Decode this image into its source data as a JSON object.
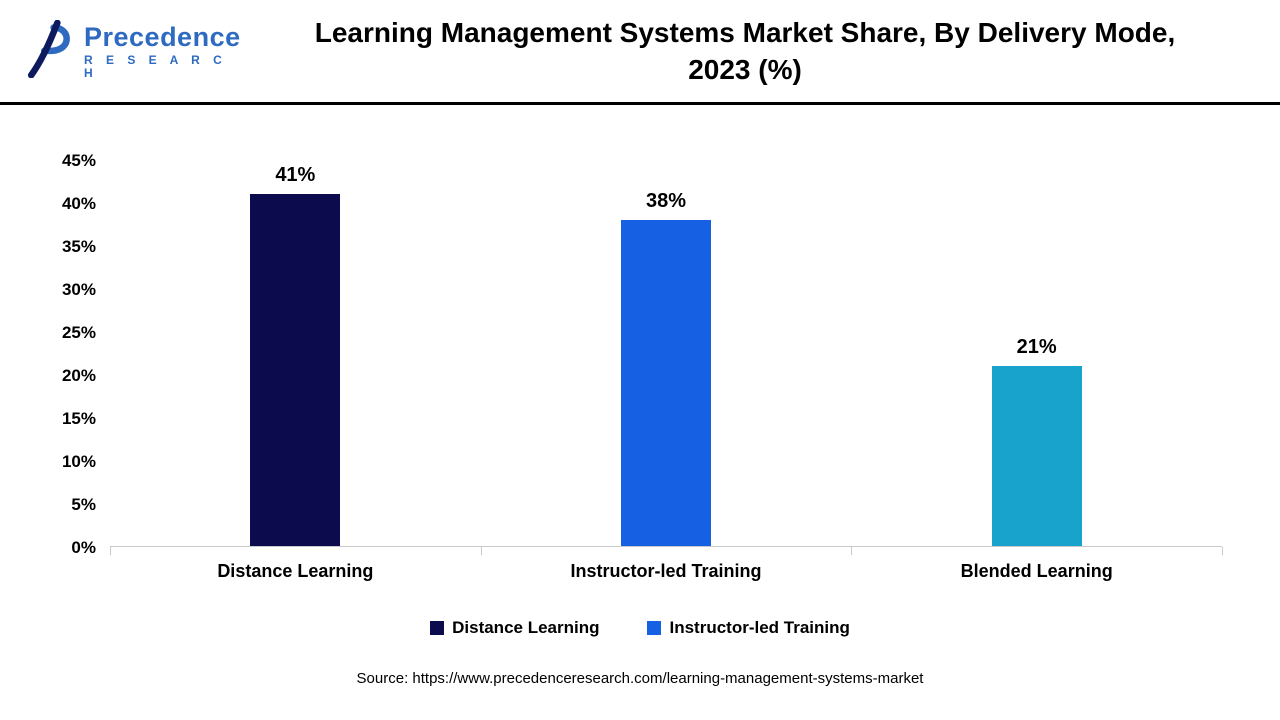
{
  "header": {
    "logo_line1": "Precedence",
    "logo_line2": "R E S E A R C H",
    "title_line1": "Learning Management Systems Market Share, By Delivery Mode,",
    "title_line2": "2023 (%)"
  },
  "chart_data": {
    "type": "bar",
    "title": "Learning Management Systems Market Share, By Delivery Mode, 2023 (%)",
    "categories": [
      "Distance Learning",
      "Instructor-led Training",
      "Blended Learning"
    ],
    "values": [
      41,
      38,
      21
    ],
    "data_labels": [
      "41%",
      "38%",
      "21%"
    ],
    "bar_colors": [
      "#0b0b4e",
      "#1661e3",
      "#17a3cc"
    ],
    "xlabel": "",
    "ylabel": "",
    "ylim": [
      0,
      45
    ],
    "ytick_step": 5,
    "ytick_labels": [
      "0%",
      "5%",
      "10%",
      "15%",
      "20%",
      "25%",
      "30%",
      "35%",
      "40%",
      "45%"
    ],
    "grid": false,
    "legend_position": "bottom",
    "legend": [
      {
        "label": "Distance Learning",
        "color": "#0b0b4e"
      },
      {
        "label": "Instructor-led Training",
        "color": "#1661e3"
      }
    ]
  },
  "footer": {
    "source": "Source: https://www.precedenceresearch.com/learning-management-systems-market"
  }
}
